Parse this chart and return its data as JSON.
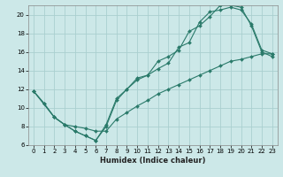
{
  "xlabel": "Humidex (Indice chaleur)",
  "ylabel": "",
  "bg_color": "#cce8e8",
  "grid_color": "#aacfcf",
  "line_color": "#2a7a6a",
  "xlim": [
    -0.5,
    23.5
  ],
  "ylim": [
    6,
    21
  ],
  "xticks": [
    0,
    1,
    2,
    3,
    4,
    5,
    6,
    7,
    8,
    9,
    10,
    11,
    12,
    13,
    14,
    15,
    16,
    17,
    18,
    19,
    20,
    21,
    22,
    23
  ],
  "yticks": [
    6,
    8,
    10,
    12,
    14,
    16,
    18,
    20
  ],
  "line1_x": [
    0,
    1,
    2,
    3,
    4,
    5,
    6,
    7,
    8,
    9,
    10,
    11,
    12,
    13,
    14,
    15,
    16,
    17,
    18,
    19,
    20,
    21,
    22,
    23
  ],
  "line1_y": [
    11.8,
    10.5,
    9.0,
    8.2,
    7.5,
    7.0,
    6.5,
    8.0,
    10.8,
    12.0,
    13.2,
    13.5,
    15.0,
    15.5,
    16.2,
    18.2,
    18.8,
    19.8,
    21.0,
    21.0,
    20.8,
    18.8,
    16.0,
    15.5
  ],
  "line2_x": [
    0,
    2,
    3,
    4,
    5,
    6,
    7,
    8,
    9,
    10,
    11,
    12,
    13,
    14,
    15,
    16,
    17,
    18,
    19,
    20,
    21,
    22,
    23
  ],
  "line2_y": [
    11.8,
    9.0,
    8.2,
    7.5,
    7.0,
    6.5,
    8.2,
    11.0,
    12.0,
    13.0,
    13.5,
    14.2,
    14.8,
    16.5,
    17.0,
    19.2,
    20.3,
    20.5,
    20.8,
    20.5,
    19.0,
    16.2,
    15.8
  ],
  "line3_x": [
    0,
    1,
    2,
    3,
    4,
    5,
    6,
    7,
    8,
    9,
    10,
    11,
    12,
    13,
    14,
    15,
    16,
    17,
    18,
    19,
    20,
    21,
    22,
    23
  ],
  "line3_y": [
    11.8,
    10.5,
    9.0,
    8.2,
    8.0,
    7.8,
    7.5,
    7.5,
    8.8,
    9.5,
    10.2,
    10.8,
    11.5,
    12.0,
    12.5,
    13.0,
    13.5,
    14.0,
    14.5,
    15.0,
    15.2,
    15.5,
    15.8,
    15.8
  ]
}
